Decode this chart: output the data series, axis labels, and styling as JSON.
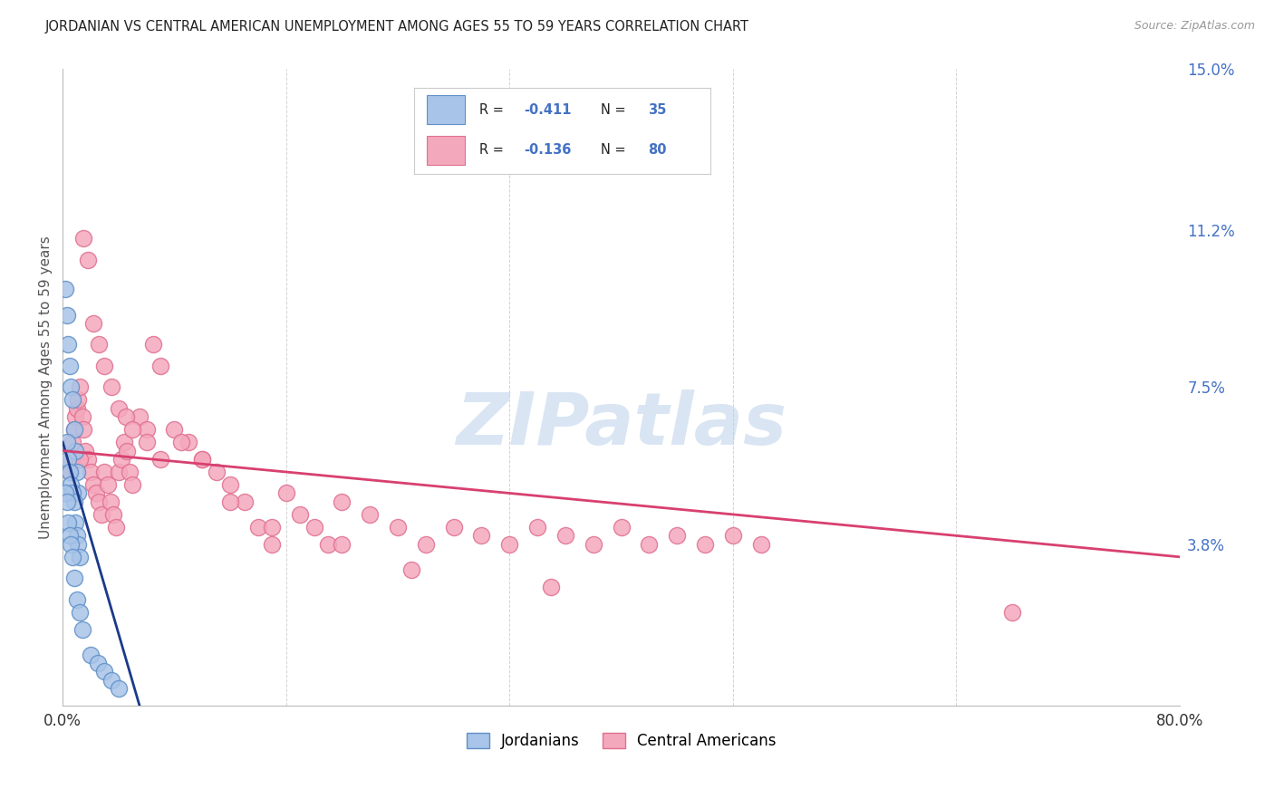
{
  "title": "JORDANIAN VS CENTRAL AMERICAN UNEMPLOYMENT AMONG AGES 55 TO 59 YEARS CORRELATION CHART",
  "source": "Source: ZipAtlas.com",
  "ylabel": "Unemployment Among Ages 55 to 59 years",
  "xlim": [
    0.0,
    0.8
  ],
  "ylim": [
    0.0,
    0.15
  ],
  "xtick_vals": [
    0.0,
    0.16,
    0.32,
    0.48,
    0.64,
    0.8
  ],
  "xtick_labels": [
    "0.0%",
    "",
    "",
    "",
    "",
    "80.0%"
  ],
  "ytick_right_vals": [
    0.0,
    0.038,
    0.075,
    0.112,
    0.15
  ],
  "ytick_right_labels": [
    "",
    "3.8%",
    "7.5%",
    "11.2%",
    "15.0%"
  ],
  "jordanian_color": "#a8c4e8",
  "jordanian_edge": "#6090c8",
  "central_american_color": "#f4a8bc",
  "central_american_edge": "#e07090",
  "trend_blue": "#1a3a8a",
  "trend_pink": "#d84070",
  "background_color": "#ffffff",
  "grid_color": "#c8c8c8",
  "watermark_text": "ZIPatlas",
  "watermark_color": "#c0d4ec",
  "legend_label1": "Jordanians",
  "legend_label2": "Central Americans",
  "jordanian_x": [
    0.002,
    0.003,
    0.004,
    0.005,
    0.006,
    0.007,
    0.008,
    0.009,
    0.01,
    0.011,
    0.003,
    0.004,
    0.005,
    0.006,
    0.007,
    0.008,
    0.009,
    0.01,
    0.011,
    0.012,
    0.002,
    0.003,
    0.004,
    0.005,
    0.006,
    0.007,
    0.008,
    0.01,
    0.012,
    0.014,
    0.02,
    0.025,
    0.03,
    0.035,
    0.04
  ],
  "jordanian_y": [
    0.098,
    0.092,
    0.085,
    0.08,
    0.075,
    0.072,
    0.065,
    0.06,
    0.055,
    0.05,
    0.062,
    0.058,
    0.055,
    0.052,
    0.05,
    0.048,
    0.043,
    0.04,
    0.038,
    0.035,
    0.05,
    0.048,
    0.043,
    0.04,
    0.038,
    0.035,
    0.03,
    0.025,
    0.022,
    0.018,
    0.012,
    0.01,
    0.008,
    0.006,
    0.004
  ],
  "central_american_x": [
    0.005,
    0.006,
    0.007,
    0.008,
    0.009,
    0.01,
    0.011,
    0.012,
    0.014,
    0.015,
    0.016,
    0.018,
    0.02,
    0.022,
    0.024,
    0.026,
    0.028,
    0.03,
    0.032,
    0.034,
    0.036,
    0.038,
    0.04,
    0.042,
    0.044,
    0.046,
    0.048,
    0.05,
    0.055,
    0.06,
    0.065,
    0.07,
    0.08,
    0.09,
    0.1,
    0.11,
    0.12,
    0.13,
    0.14,
    0.15,
    0.16,
    0.17,
    0.18,
    0.19,
    0.2,
    0.22,
    0.24,
    0.26,
    0.28,
    0.3,
    0.32,
    0.34,
    0.36,
    0.38,
    0.4,
    0.42,
    0.44,
    0.46,
    0.48,
    0.5,
    0.012,
    0.015,
    0.018,
    0.022,
    0.026,
    0.03,
    0.035,
    0.04,
    0.045,
    0.05,
    0.06,
    0.07,
    0.085,
    0.1,
    0.12,
    0.15,
    0.2,
    0.25,
    0.35,
    0.68
  ],
  "central_american_y": [
    0.055,
    0.058,
    0.062,
    0.065,
    0.068,
    0.07,
    0.072,
    0.075,
    0.068,
    0.065,
    0.06,
    0.058,
    0.055,
    0.052,
    0.05,
    0.048,
    0.045,
    0.055,
    0.052,
    0.048,
    0.045,
    0.042,
    0.055,
    0.058,
    0.062,
    0.06,
    0.055,
    0.052,
    0.068,
    0.065,
    0.085,
    0.08,
    0.065,
    0.062,
    0.058,
    0.055,
    0.052,
    0.048,
    0.042,
    0.038,
    0.05,
    0.045,
    0.042,
    0.038,
    0.048,
    0.045,
    0.042,
    0.038,
    0.042,
    0.04,
    0.038,
    0.042,
    0.04,
    0.038,
    0.042,
    0.038,
    0.04,
    0.038,
    0.04,
    0.038,
    0.058,
    0.11,
    0.105,
    0.09,
    0.085,
    0.08,
    0.075,
    0.07,
    0.068,
    0.065,
    0.062,
    0.058,
    0.062,
    0.058,
    0.048,
    0.042,
    0.038,
    0.032,
    0.028,
    0.022
  ],
  "blue_line_x": [
    0.0,
    0.055
  ],
  "blue_line_y": [
    0.062,
    0.0
  ],
  "pink_line_x": [
    0.0,
    0.8
  ],
  "pink_line_y": [
    0.06,
    0.035
  ]
}
